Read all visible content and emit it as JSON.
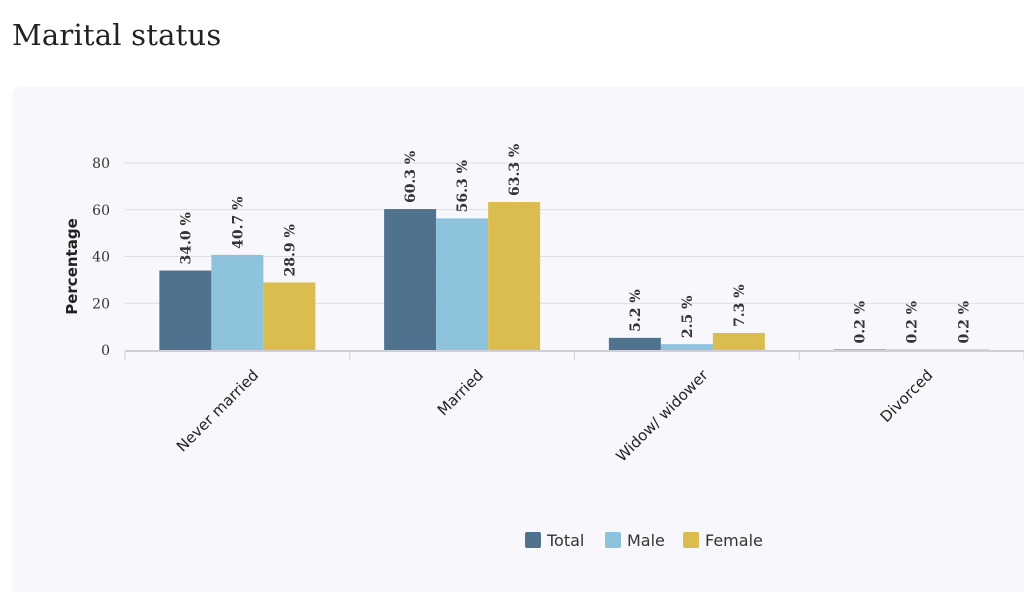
{
  "page": {
    "title": "Marital status"
  },
  "chart_data": {
    "type": "bar",
    "categories": [
      "Never married",
      "Married",
      "Widow/ widower",
      "Divorced"
    ],
    "series": [
      {
        "name": "Total",
        "values": [
          34.0,
          60.3,
          5.2,
          0.2
        ],
        "color": "#4f728f"
      },
      {
        "name": "Male",
        "values": [
          40.7,
          56.3,
          2.5,
          0.2
        ],
        "color": "#8dc3dc"
      },
      {
        "name": "Female",
        "values": [
          28.9,
          63.3,
          7.3,
          0.2
        ],
        "color": "#dbbc4f"
      }
    ],
    "data_labels": [
      [
        "34.0 %",
        "60.3 %",
        "5.2 %",
        "0.2 %"
      ],
      [
        "40.7 %",
        "56.3 %",
        "2.5 %",
        "0.2 %"
      ],
      [
        "28.9 %",
        "63.3 %",
        "7.3 %",
        "0.2 %"
      ]
    ],
    "title": "",
    "xlabel": "",
    "ylabel": "Percentage",
    "ylim": [
      0,
      80
    ],
    "yticks": [
      0,
      20,
      40,
      60,
      80
    ],
    "grid": true,
    "legend_position": "bottom-center"
  }
}
